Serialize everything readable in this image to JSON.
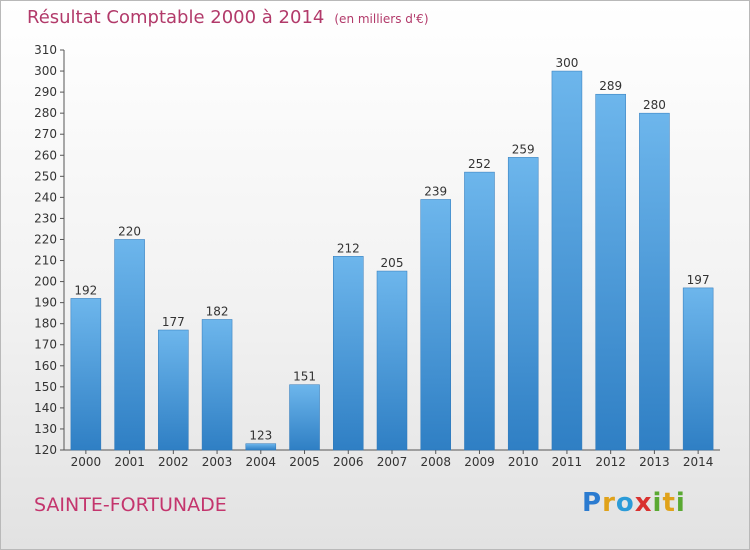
{
  "header": {
    "title": "Résultat Comptable 2000 à 2014",
    "subtitle": "(en milliers d'€)"
  },
  "footer": {
    "city": "SAINTE-FORTUNADE",
    "logo_letters": [
      {
        "ch": "P",
        "color": "#2b7bd0"
      },
      {
        "ch": "r",
        "color": "#e0a21a"
      },
      {
        "ch": "o",
        "color": "#2b9bd8"
      },
      {
        "ch": "x",
        "color": "#d9312f"
      },
      {
        "ch": "i",
        "color": "#5aa932"
      },
      {
        "ch": "t",
        "color": "#e0a21a"
      },
      {
        "ch": "i",
        "color": "#5aa932"
      }
    ]
  },
  "chart_data": {
    "type": "bar",
    "title": "Résultat Comptable 2000 à 2014",
    "subtitle": "(en milliers d'€)",
    "xlabel": "",
    "ylabel": "",
    "categories": [
      "2000",
      "2001",
      "2002",
      "2003",
      "2004",
      "2005",
      "2006",
      "2007",
      "2008",
      "2009",
      "2010",
      "2011",
      "2012",
      "2013",
      "2014"
    ],
    "values": [
      192,
      220,
      177,
      182,
      123,
      151,
      212,
      205,
      239,
      252,
      259,
      300,
      289,
      280,
      197
    ],
    "ylim": [
      120,
      310
    ],
    "ytick_step": 10,
    "grid": false,
    "bar_color_top": "#6db6ec",
    "bar_color_bottom": "#2f7fc4"
  }
}
